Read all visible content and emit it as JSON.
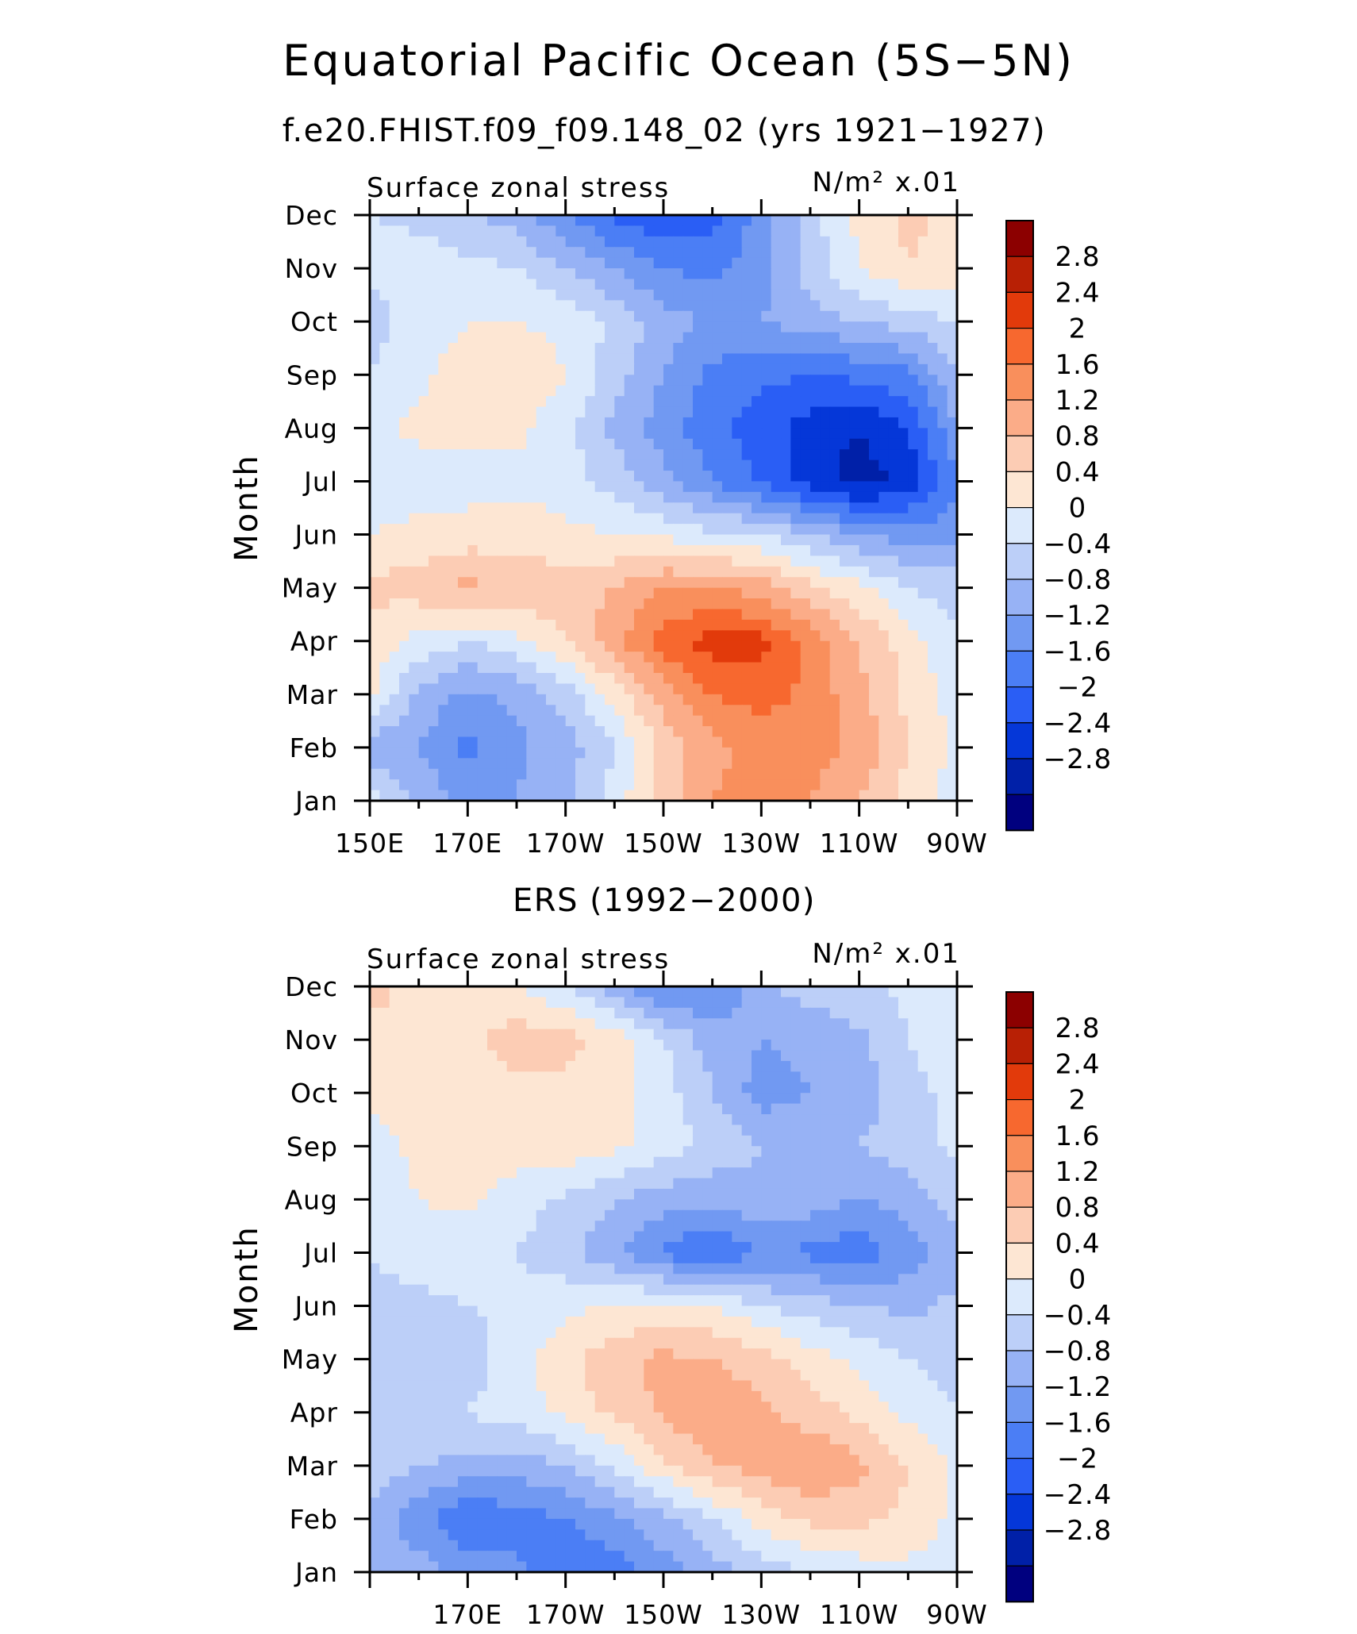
{
  "figure": {
    "title": "Equatorial Pacific Ocean (5S−5N)",
    "subtitle_top": "f.e20.FHIST.f09_f09.148_02 (yrs 1921−1927)",
    "subtitle_bottom": "ERS (1992−2000)"
  },
  "colors": {
    "palette": [
      "#00007f",
      "#0020a8",
      "#0537d8",
      "#2a5ef5",
      "#4b7ef5",
      "#7199f2",
      "#97b2f5",
      "#bccff8",
      "#dceafc",
      "#fde6d3",
      "#fcccb4",
      "#fbac88",
      "#f98f5c",
      "#f7682f",
      "#e23a0b",
      "#b82005",
      "#8c0000"
    ]
  },
  "chart_data": [
    {
      "type": "heatmap",
      "panel": "top",
      "left_label": "Surface zonal stress",
      "units_label": "N/m² x.01",
      "ylabel": "Month",
      "y_ticks": [
        "Jan",
        "Feb",
        "Mar",
        "Apr",
        "May",
        "Jun",
        "Jul",
        "Aug",
        "Sep",
        "Oct",
        "Nov",
        "Dec"
      ],
      "x_ticks": [
        "150E",
        "170E",
        "170W",
        "150W",
        "130W",
        "110W",
        "90W"
      ],
      "xlim_lon": [
        150,
        270
      ],
      "contour_levels": [
        -2.8,
        -2.4,
        -2,
        -1.6,
        -1.2,
        -0.8,
        -0.4,
        0,
        0.4,
        0.8,
        1.2,
        1.6,
        2,
        2.4,
        2.8
      ],
      "colorbar_labels": [
        "2.8",
        "2.4",
        "2",
        "1.6",
        "1.2",
        "0.8",
        "0.4",
        "0",
        "−0.4",
        "−0.8",
        "−1.2",
        "−1.6",
        "−2",
        "−2.4",
        "−2.8"
      ],
      "lon": [
        150,
        160,
        170,
        180,
        190,
        200,
        210,
        220,
        230,
        240,
        250,
        260,
        270
      ],
      "values": [
        [
          0.2,
          -0.5,
          -0.9,
          -0.8,
          -0.5,
          0.2,
          1.0,
          1.6,
          1.8,
          1.6,
          1.2,
          0.6,
          0.2
        ],
        [
          -0.7,
          -0.8,
          -1.3,
          -0.9,
          -0.6,
          0.0,
          0.9,
          1.5,
          1.7,
          1.8,
          1.5,
          0.8,
          0.3
        ],
        [
          0.6,
          -0.5,
          -0.9,
          -0.7,
          -0.2,
          0.6,
          1.4,
          2.0,
          2.2,
          1.9,
          1.3,
          0.7,
          0.2
        ],
        [
          0.6,
          0.3,
          0.0,
          0.3,
          0.8,
          1.5,
          2.2,
          2.6,
          2.5,
          1.9,
          1.2,
          0.6,
          0.1
        ],
        [
          0.9,
          1.0,
          1.3,
          1.1,
          1.0,
          1.2,
          1.6,
          1.6,
          1.4,
          0.9,
          0.5,
          0.0,
          -0.2
        ],
        [
          0.4,
          0.5,
          0.6,
          0.6,
          0.5,
          0.4,
          0.3,
          0.1,
          0.0,
          -0.4,
          -0.8,
          -1.0,
          -0.9
        ],
        [
          0.3,
          0.2,
          0.2,
          0.3,
          0.2,
          -0.2,
          -0.7,
          -1.2,
          -1.7,
          -2.2,
          -2.6,
          -2.3,
          -1.3
        ],
        [
          0.3,
          0.5,
          0.6,
          0.5,
          0.1,
          -0.5,
          -1.0,
          -1.5,
          -1.8,
          -2.2,
          -2.4,
          -2.0,
          -0.8
        ],
        [
          0.0,
          0.3,
          0.6,
          0.7,
          0.4,
          -0.2,
          -0.8,
          -1.3,
          -1.5,
          -1.6,
          -1.5,
          -1.3,
          -0.4
        ],
        [
          -0.2,
          0.2,
          0.4,
          0.4,
          0.3,
          -0.1,
          -0.6,
          -0.9,
          -0.8,
          -0.6,
          -0.4,
          -0.2,
          0.0
        ],
        [
          0.1,
          0.2,
          0.1,
          0.0,
          -0.4,
          -0.8,
          -1.2,
          -1.3,
          -1.0,
          -0.2,
          0.4,
          0.8,
          0.6
        ],
        [
          0.0,
          -0.1,
          -0.3,
          -0.6,
          -1.2,
          -1.7,
          -2.0,
          -1.8,
          -1.0,
          -0.2,
          0.5,
          0.9,
          0.7
        ]
      ]
    },
    {
      "type": "heatmap",
      "panel": "bottom",
      "left_label": "Surface zonal stress",
      "units_label": "N/m² x.01",
      "ylabel": "Month",
      "y_ticks": [
        "Jan",
        "Feb",
        "Mar",
        "Apr",
        "May",
        "Jun",
        "Jul",
        "Aug",
        "Sep",
        "Oct",
        "Nov",
        "Dec"
      ],
      "x_ticks": [
        "170E",
        "170W",
        "150W",
        "130W",
        "110W",
        "90W"
      ],
      "xlim_lon": [
        150,
        270
      ],
      "contour_levels": [
        -2.8,
        -2.4,
        -2,
        -1.6,
        -1.2,
        -0.8,
        -0.4,
        0,
        0.4,
        0.8,
        1.2,
        1.6,
        2,
        2.4,
        2.8
      ],
      "colorbar_labels": [
        "2.8",
        "2.4",
        "2",
        "1.6",
        "1.2",
        "0.8",
        "0.4",
        "0",
        "−0.4",
        "−0.8",
        "−1.2",
        "−1.6",
        "−2",
        "−2.4",
        "−2.8"
      ],
      "lon": [
        150,
        160,
        170,
        180,
        190,
        200,
        210,
        220,
        230,
        240,
        250,
        260,
        270
      ],
      "values": [
        [
          -0.4,
          -0.6,
          -0.9,
          -1.1,
          -1.6,
          -1.4,
          -1.0,
          -0.6,
          -0.2,
          0.0,
          0.2,
          0.3,
          0.1
        ],
        [
          -0.5,
          -1.1,
          -1.6,
          -1.4,
          -1.2,
          -0.9,
          -0.5,
          0.0,
          0.6,
          0.9,
          0.9,
          0.7,
          0.3
        ],
        [
          -0.2,
          -0.4,
          -0.5,
          -0.6,
          -0.4,
          0.1,
          0.7,
          1.2,
          1.4,
          1.6,
          1.3,
          0.8,
          0.3
        ],
        [
          -0.3,
          -0.1,
          0.0,
          0.2,
          0.5,
          0.9,
          1.3,
          1.5,
          1.3,
          1.0,
          0.7,
          0.3,
          0.0
        ],
        [
          -0.3,
          -0.2,
          -0.2,
          0.2,
          0.7,
          1.1,
          1.3,
          1.2,
          1.0,
          0.6,
          0.3,
          0.0,
          -0.2
        ],
        [
          -0.3,
          -0.1,
          0.0,
          0.1,
          0.3,
          0.4,
          0.5,
          0.4,
          0.0,
          -0.2,
          -0.4,
          -0.5,
          -0.3
        ],
        [
          0.1,
          0.2,
          0.1,
          0.0,
          -0.3,
          -0.7,
          -1.3,
          -1.6,
          -1.2,
          -1.3,
          -1.5,
          -1.0,
          -0.6
        ],
        [
          0.3,
          0.4,
          0.5,
          0.2,
          -0.1,
          -0.4,
          -0.6,
          -0.7,
          -0.5,
          -0.6,
          -0.8,
          -0.6,
          -0.2
        ],
        [
          0.2,
          0.5,
          0.6,
          0.6,
          0.7,
          0.5,
          0.2,
          -0.1,
          -0.4,
          -0.5,
          -0.4,
          -0.2,
          0.1
        ],
        [
          0.5,
          0.7,
          0.6,
          0.7,
          0.6,
          0.5,
          0.2,
          -0.4,
          -1.0,
          -0.8,
          -0.6,
          -0.2,
          0.2
        ],
        [
          0.7,
          0.8,
          0.7,
          1.0,
          1.0,
          0.6,
          0.0,
          -0.6,
          -0.8,
          -0.7,
          -0.5,
          0.0,
          0.4
        ],
        [
          0.9,
          0.7,
          0.6,
          0.4,
          0.0,
          -0.6,
          -1.3,
          -1.2,
          -0.5,
          -0.2,
          -0.1,
          0.1,
          0.3
        ]
      ]
    }
  ]
}
